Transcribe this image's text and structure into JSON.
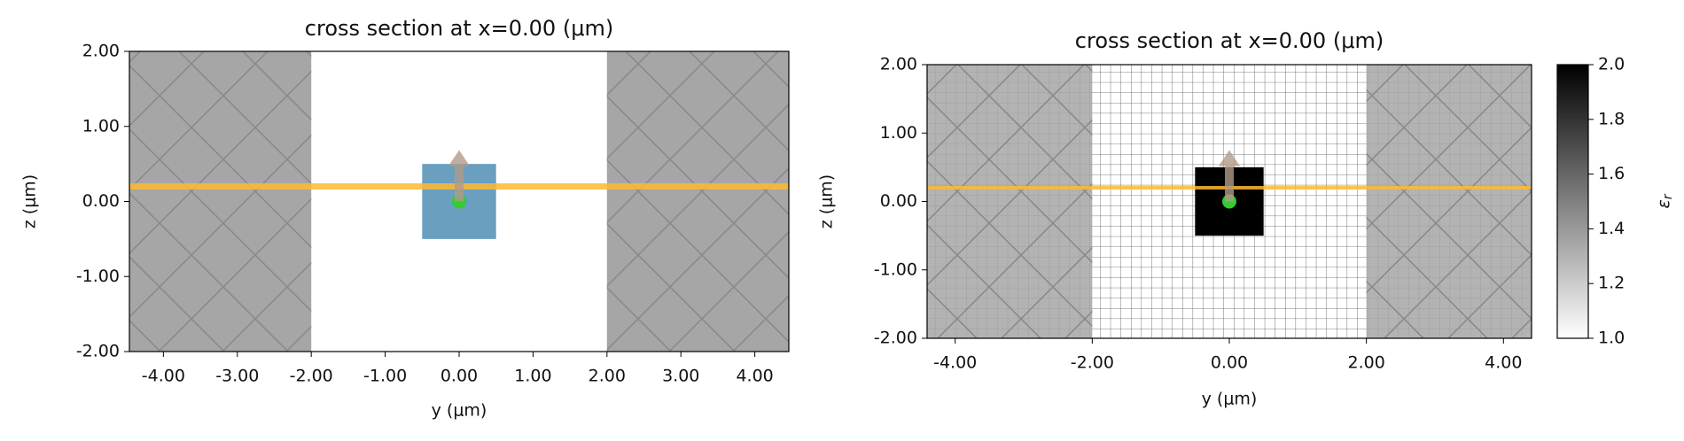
{
  "chart_data": [
    {
      "type": "cross_section",
      "title": "cross section at x=0.00 (μm)",
      "xlabel": "y (μm)",
      "ylabel": "z (μm)",
      "xlim": [
        -4.46,
        4.46
      ],
      "ylim": [
        -2,
        2
      ],
      "xticks": [
        {
          "value": -4,
          "label": "-4.00"
        },
        {
          "value": -3,
          "label": "-3.00"
        },
        {
          "value": -2,
          "label": "-2.00"
        },
        {
          "value": -1,
          "label": "-1.00"
        },
        {
          "value": 0,
          "label": "0.00"
        },
        {
          "value": 1,
          "label": "1.00"
        },
        {
          "value": 2,
          "label": "2.00"
        },
        {
          "value": 3,
          "label": "3.00"
        },
        {
          "value": 4,
          "label": "4.00"
        }
      ],
      "yticks": [
        {
          "value": -2,
          "label": "-2.00"
        },
        {
          "value": -1,
          "label": "-1.00"
        },
        {
          "value": 0,
          "label": "0.00"
        },
        {
          "value": 1,
          "label": "1.00"
        },
        {
          "value": 2,
          "label": "2.00"
        }
      ],
      "pml": [
        [
          -4.46,
          -2
        ],
        [
          2,
          4.46
        ]
      ],
      "structure": {
        "y": [
          -0.5,
          0.5
        ],
        "z": [
          -0.5,
          0.5
        ],
        "color": "#6a9fc0"
      },
      "monitor_z": 0.2,
      "source": {
        "y": 0,
        "z": 0
      },
      "mesh": false
    },
    {
      "type": "cross_section",
      "title": "cross section at x=0.00 (μm)",
      "xlabel": "y (μm)",
      "ylabel": "z (μm)",
      "xlim": [
        -4.41,
        4.41
      ],
      "ylim": [
        -2,
        2
      ],
      "xticks": [
        {
          "value": -4,
          "label": "-4.00"
        },
        {
          "value": -2,
          "label": "-2.00"
        },
        {
          "value": 0,
          "label": "0.00"
        },
        {
          "value": 2,
          "label": "2.00"
        },
        {
          "value": 4,
          "label": "4.00"
        }
      ],
      "yticks": [
        {
          "value": -2,
          "label": "-2.00"
        },
        {
          "value": -1,
          "label": "-1.00"
        },
        {
          "value": 0,
          "label": "0.00"
        },
        {
          "value": 1,
          "label": "1.00"
        },
        {
          "value": 2,
          "label": "2.00"
        }
      ],
      "pml": [
        [
          -4.41,
          -2
        ],
        [
          2,
          4.41
        ]
      ],
      "structure": {
        "y": [
          -0.5,
          0.5
        ],
        "z": [
          -0.5,
          0.5
        ],
        "color": "#000000"
      },
      "monitor_z": 0.2,
      "source": {
        "y": 0,
        "z": 0
      },
      "mesh": true,
      "colorbar": {
        "clim": [
          1,
          2
        ],
        "ticks": [
          {
            "value": 1,
            "label": "1.0"
          },
          {
            "value": 1.2,
            "label": "1.2"
          },
          {
            "value": 1.4,
            "label": "1.4"
          },
          {
            "value": 1.6,
            "label": "1.6"
          },
          {
            "value": 1.8,
            "label": "1.8"
          },
          {
            "value": 2,
            "label": "2.0"
          }
        ],
        "label": {
          "symbol": "ε",
          "subscript": "r"
        }
      }
    }
  ]
}
